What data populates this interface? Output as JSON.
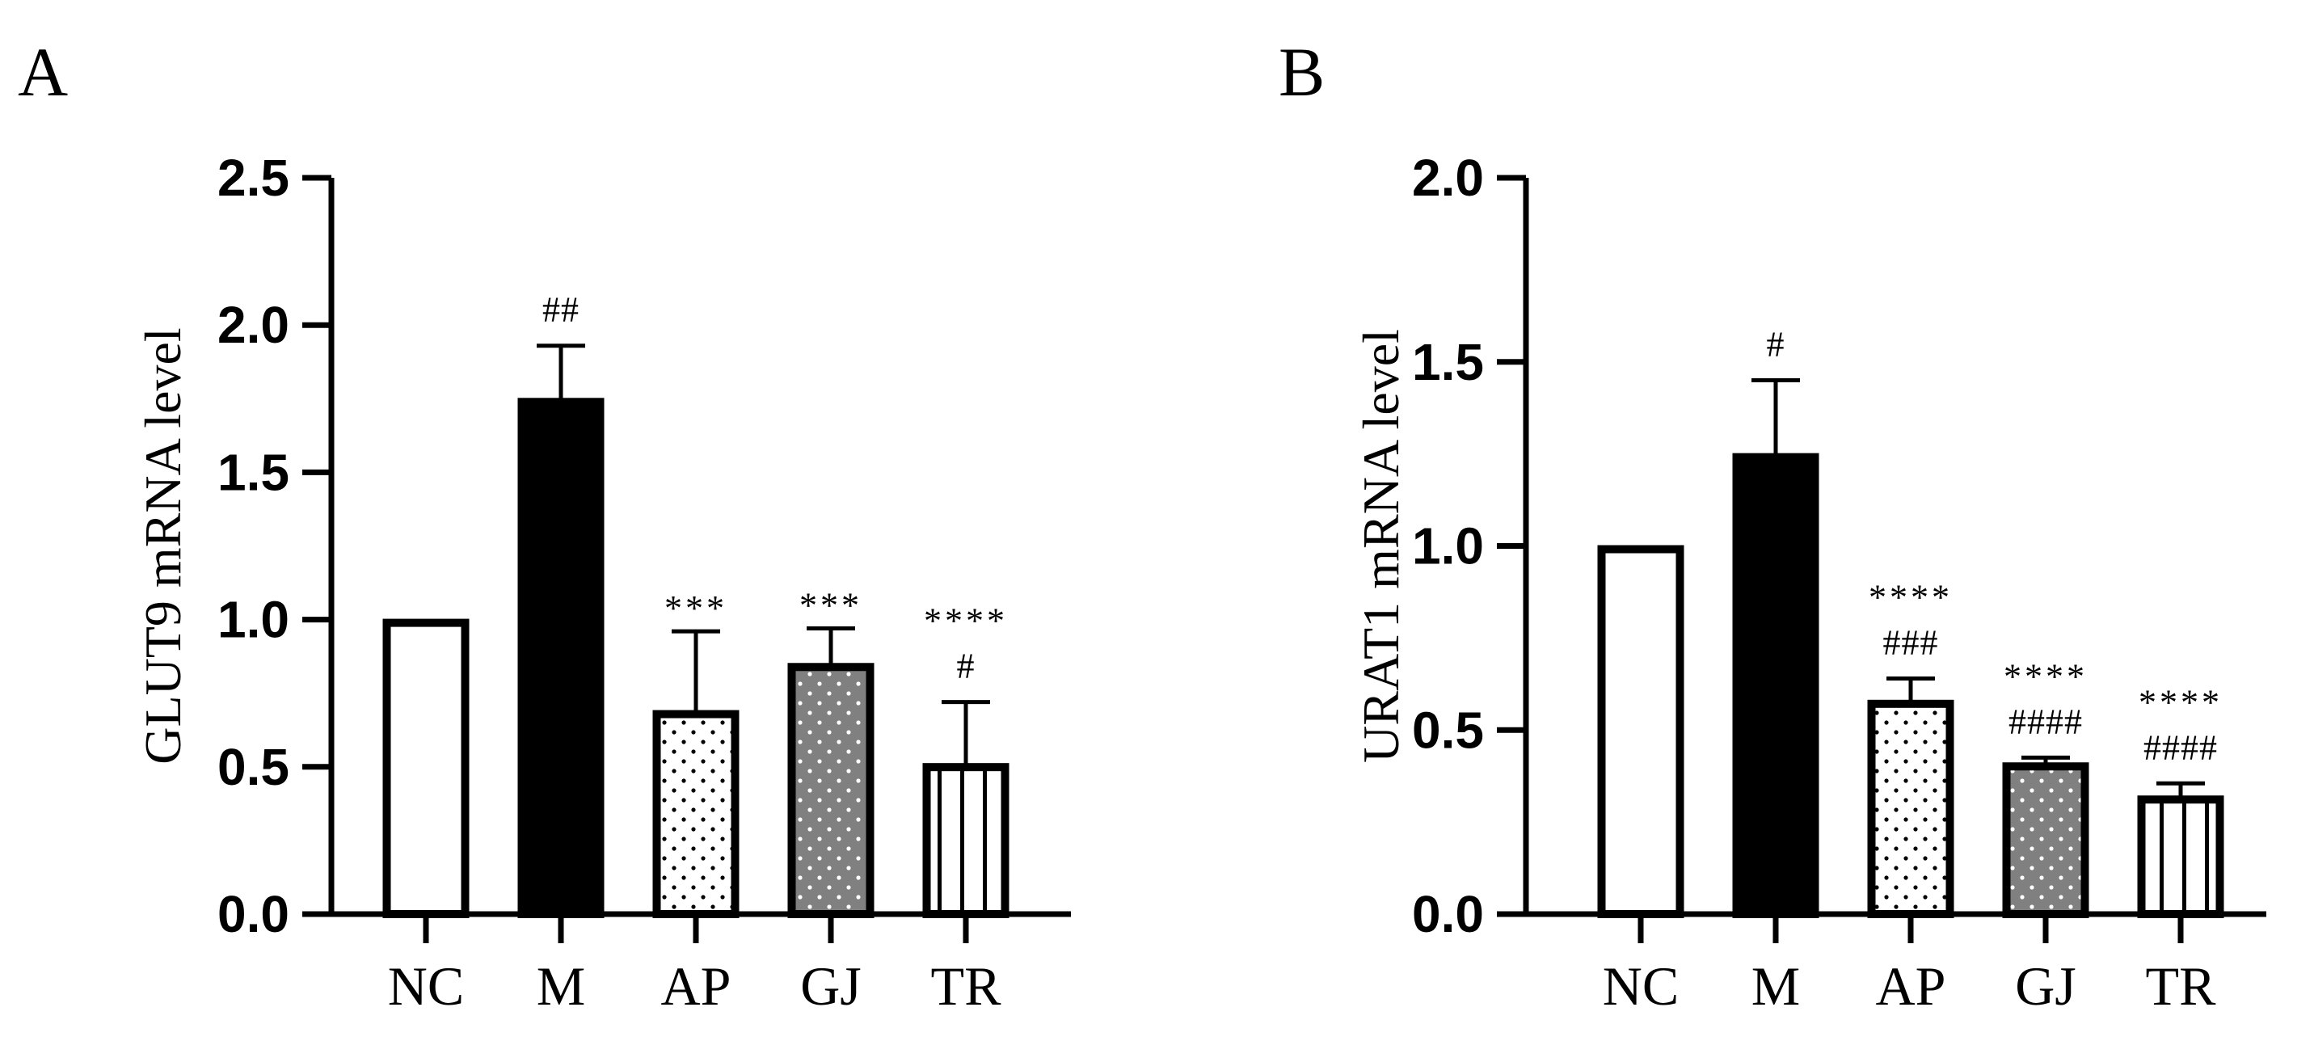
{
  "chart_data": [
    {
      "panel": "A",
      "type": "bar",
      "ylabel": "GLUT9 mRNA level",
      "ylim": [
        0,
        2.5
      ],
      "yticks": [
        "0.0",
        "0.5",
        "1.0",
        "1.5",
        "2.0",
        "2.5"
      ],
      "categories": [
        "NC",
        "M",
        "AP",
        "GJ",
        "TR"
      ],
      "values": [
        1.0,
        1.75,
        0.69,
        0.85,
        0.51
      ],
      "errors": [
        0,
        0.18,
        0.27,
        0.12,
        0.21
      ],
      "fills": [
        "white",
        "black",
        "dots-white",
        "dots-gray",
        "vlines"
      ],
      "annotations": [
        [],
        [
          "##"
        ],
        [
          "***"
        ],
        [
          "***"
        ],
        [
          "****",
          "#"
        ]
      ]
    },
    {
      "panel": "B",
      "type": "bar",
      "ylabel": "URAT1 mRNA level",
      "ylim": [
        0,
        2.0
      ],
      "yticks": [
        "0.0",
        "0.5",
        "1.0",
        "1.5",
        "2.0"
      ],
      "categories": [
        "NC",
        "M",
        "AP",
        "GJ",
        "TR"
      ],
      "values": [
        1.0,
        1.25,
        0.58,
        0.41,
        0.32
      ],
      "errors": [
        0,
        0.2,
        0.06,
        0.015,
        0.035
      ],
      "fills": [
        "white",
        "black",
        "dots-white",
        "dots-gray",
        "vlines"
      ],
      "annotations": [
        [],
        [
          "#"
        ],
        [
          "****",
          "###"
        ],
        [
          "****",
          "####"
        ],
        [
          "****",
          "####"
        ]
      ]
    }
  ]
}
